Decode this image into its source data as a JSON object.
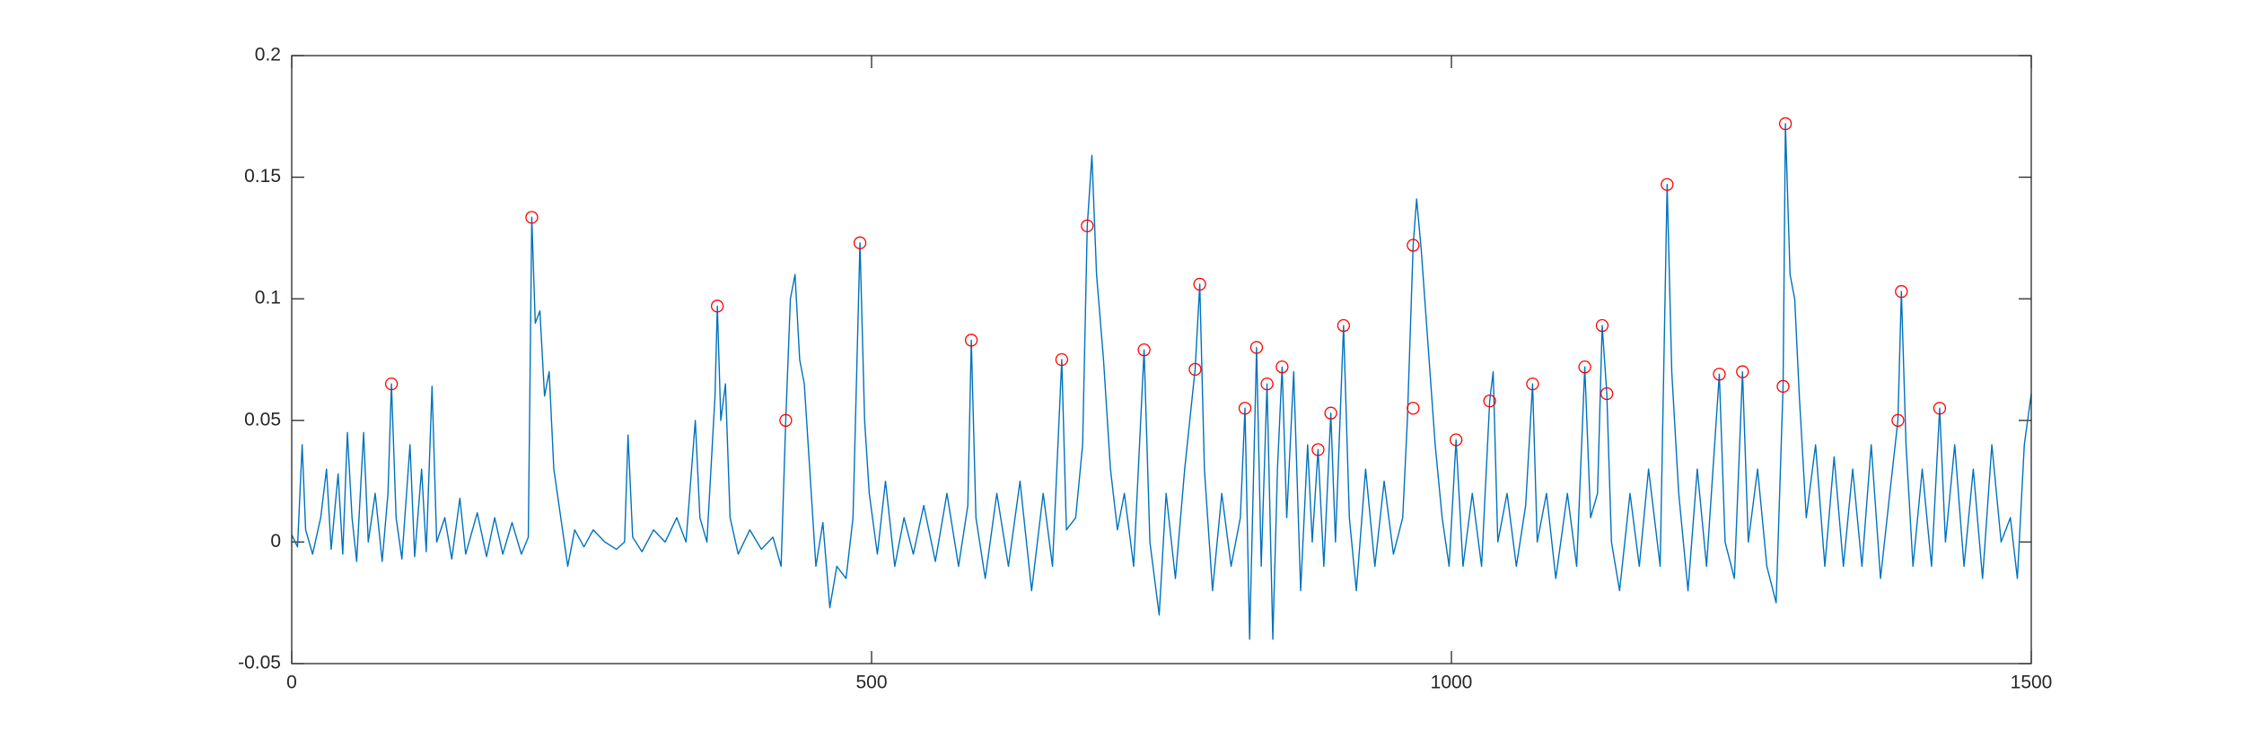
{
  "chart_data": {
    "type": "line",
    "xlim": [
      0,
      1500
    ],
    "xticks": [
      0,
      500,
      1000,
      1500
    ],
    "ylim": [
      -0.05,
      0.2
    ],
    "yticks": [
      -0.05,
      0,
      0.05,
      0.1,
      0.15,
      0.2
    ],
    "grid": false,
    "series": [
      {
        "color": "#0072bd",
        "x": [
          0,
          5,
          9,
          12,
          18,
          25,
          30,
          34,
          40,
          44,
          48,
          52,
          56,
          62,
          66,
          72,
          78,
          83,
          86,
          90,
          95,
          102,
          106,
          112,
          116,
          121,
          125,
          132,
          138,
          145,
          150,
          160,
          168,
          175,
          182,
          190,
          198,
          204,
          207,
          210,
          214,
          218,
          222,
          226,
          232,
          238,
          244,
          252,
          260,
          270,
          280,
          287,
          290,
          294,
          302,
          312,
          322,
          332,
          340,
          348,
          352,
          358,
          365,
          367,
          370,
          374,
          378,
          385,
          395,
          405,
          415,
          422,
          426,
          430,
          434,
          438,
          442,
          446,
          452,
          458,
          464,
          470,
          478,
          484,
          490,
          494,
          498,
          505,
          512,
          520,
          528,
          536,
          545,
          555,
          565,
          575,
          583,
          586,
          590,
          598,
          608,
          618,
          628,
          638,
          648,
          656,
          664,
          668,
          676,
          682,
          686,
          690,
          694,
          700,
          706,
          712,
          718,
          726,
          735,
          740,
          748,
          754,
          762,
          770,
          779,
          783,
          787,
          794,
          802,
          810,
          818,
          822,
          826,
          832,
          836,
          841,
          846,
          850,
          854,
          858,
          864,
          870,
          876,
          880,
          885,
          890,
          896,
          900,
          907,
          912,
          918,
          926,
          934,
          942,
          950,
          958,
          962,
          967,
          970,
          974,
          980,
          986,
          992,
          998,
          1004,
          1010,
          1018,
          1026,
          1033,
          1036,
          1040,
          1048,
          1056,
          1064,
          1070,
          1074,
          1082,
          1090,
          1100,
          1108,
          1115,
          1120,
          1126,
          1130,
          1134,
          1138,
          1145,
          1154,
          1162,
          1170,
          1180,
          1186,
          1190,
          1196,
          1204,
          1212,
          1220,
          1231,
          1236,
          1244,
          1251,
          1256,
          1264,
          1272,
          1280,
          1286,
          1288,
          1292,
          1296,
          1300,
          1306,
          1314,
          1322,
          1330,
          1338,
          1346,
          1354,
          1362,
          1370,
          1378,
          1385,
          1388,
          1392,
          1398,
          1406,
          1414,
          1421,
          1426,
          1434,
          1442,
          1450,
          1458,
          1466,
          1474,
          1482,
          1488,
          1494,
          1500
        ],
        "values": [
          0.003,
          -0.002,
          0.04,
          0.005,
          -0.005,
          0.01,
          0.03,
          -0.003,
          0.028,
          -0.005,
          0.045,
          0.01,
          -0.008,
          0.045,
          0,
          0.02,
          -0.008,
          0.02,
          0.065,
          0.01,
          -0.007,
          0.04,
          -0.006,
          0.03,
          -0.004,
          0.064,
          0,
          0.01,
          -0.007,
          0.018,
          -0.005,
          0.012,
          -0.006,
          0.01,
          -0.005,
          0.008,
          -0.005,
          0.002,
          0.1335,
          0.09,
          0.095,
          0.06,
          0.07,
          0.03,
          0.01,
          -0.01,
          0.005,
          -0.002,
          0.005,
          0,
          -0.003,
          0,
          0.044,
          0.002,
          -0.004,
          0.005,
          0,
          0.01,
          0,
          0.05,
          0.01,
          0,
          0.06,
          0.097,
          0.05,
          0.065,
          0.01,
          -0.005,
          0.005,
          -0.003,
          0.002,
          -0.01,
          0.05,
          0.1,
          0.11,
          0.075,
          0.065,
          0.035,
          -0.01,
          0.008,
          -0.027,
          -0.01,
          -0.015,
          0.01,
          0.123,
          0.05,
          0.02,
          -0.005,
          0.025,
          -0.01,
          0.01,
          -0.005,
          0.015,
          -0.008,
          0.02,
          -0.01,
          0.015,
          0.083,
          0.01,
          -0.015,
          0.02,
          -0.01,
          0.025,
          -0.02,
          0.02,
          -0.01,
          0.075,
          0.005,
          0.01,
          0.04,
          0.13,
          0.159,
          0.11,
          0.075,
          0.03,
          0.005,
          0.02,
          -0.01,
          0.079,
          0,
          -0.03,
          0.02,
          -0.015,
          0.03,
          0.071,
          0.106,
          0.03,
          -0.02,
          0.02,
          -0.01,
          0.01,
          0.055,
          -0.04,
          0.08,
          -0.01,
          0.065,
          -0.04,
          0.03,
          0.072,
          0.01,
          0.07,
          -0.02,
          0.04,
          0,
          0.038,
          -0.01,
          0.053,
          0,
          0.089,
          0.01,
          -0.02,
          0.03,
          -0.01,
          0.025,
          -0.005,
          0.01,
          0.05,
          0.122,
          0.141,
          0.12,
          0.08,
          0.04,
          0.01,
          -0.01,
          0.042,
          -0.01,
          0.02,
          -0.01,
          0.058,
          0.07,
          0,
          0.02,
          -0.01,
          0.015,
          0.065,
          0,
          0.02,
          -0.015,
          0.02,
          -0.01,
          0.072,
          0.01,
          0.02,
          0.089,
          0.061,
          0,
          -0.02,
          0.02,
          -0.01,
          0.03,
          -0.01,
          0.147,
          0.07,
          0.02,
          -0.02,
          0.03,
          -0.01,
          0.069,
          0,
          -0.015,
          0.07,
          0,
          0.03,
          -0.01,
          -0.025,
          0.064,
          0.172,
          0.11,
          0.1,
          0.06,
          0.01,
          0.04,
          -0.01,
          0.035,
          -0.01,
          0.03,
          -0.01,
          0.04,
          -0.015,
          0.02,
          0.05,
          0.103,
          0.04,
          -0.01,
          0.03,
          -0.01,
          0.055,
          0,
          0.04,
          -0.01,
          0.03,
          -0.015,
          0.04,
          0,
          0.01,
          -0.015,
          0.04,
          0.061
        ]
      },
      {
        "color": "#ff0000",
        "marker": "circle",
        "x": [
          86,
          207,
          367,
          426,
          490,
          586,
          664,
          686,
          735,
          779,
          783,
          822,
          832,
          841,
          854,
          885,
          896,
          907,
          967,
          967,
          1004,
          1033,
          1070,
          1115,
          1130,
          1134,
          1186,
          1231,
          1251,
          1286,
          1288,
          1385,
          1388,
          1421
        ],
        "values": [
          0.065,
          0.1335,
          0.097,
          0.05,
          0.123,
          0.083,
          0.075,
          0.13,
          0.079,
          0.071,
          0.106,
          0.055,
          0.08,
          0.065,
          0.072,
          0.038,
          0.053,
          0.089,
          0.122,
          0.055,
          0.042,
          0.058,
          0.065,
          0.072,
          0.089,
          0.061,
          0.147,
          0.069,
          0.07,
          0.064,
          0.172,
          0.05,
          0.103,
          0.055
        ]
      }
    ]
  }
}
